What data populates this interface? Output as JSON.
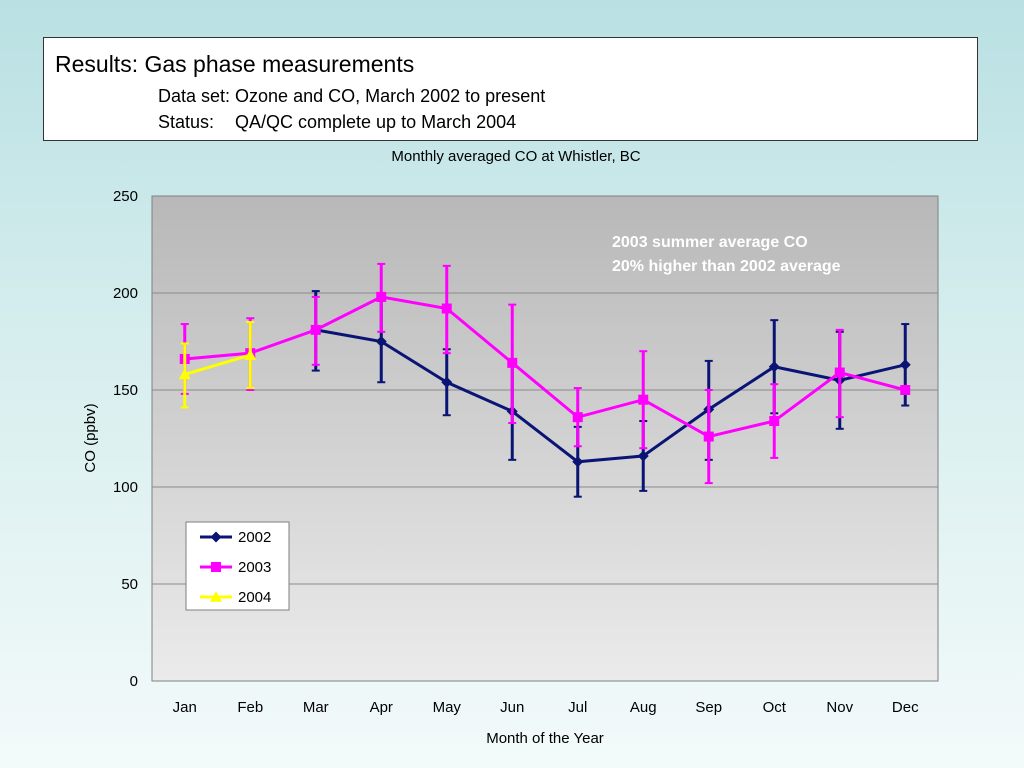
{
  "header": {
    "title": "Results: Gas phase measurements",
    "dataset_line": "Data set: Ozone and CO, March 2002 to present",
    "status_label": "Status:",
    "status_value": "QA/QC complete up to March 2004"
  },
  "colors": {
    "series_2002": "#0a1475",
    "series_2003": "#ff00ff",
    "series_2004": "#ffff00",
    "annotation": "#ffffff",
    "plot_bg_top": "#b8b8b8",
    "plot_bg_bottom": "#ebebeb",
    "gridline": "#8a8a8a"
  },
  "chart_data": {
    "type": "line",
    "title": "Monthly averaged CO at Whistler, BC",
    "xlabel": "Month of the Year",
    "ylabel": "CO (ppbv)",
    "categories": [
      "Jan",
      "Feb",
      "Mar",
      "Apr",
      "May",
      "Jun",
      "Jul",
      "Aug",
      "Sep",
      "Oct",
      "Nov",
      "Dec"
    ],
    "ylim": [
      0,
      250
    ],
    "yticks": [
      0,
      50,
      100,
      150,
      200,
      250
    ],
    "grid": true,
    "legend_position": "bottom-left",
    "annotation": [
      "2003 summer average CO",
      "20% higher than 2002 average"
    ],
    "series": [
      {
        "name": "2002",
        "marker": "diamond",
        "values": [
          null,
          null,
          181,
          175,
          154,
          139,
          113,
          116,
          140,
          162,
          155,
          163
        ],
        "error_low": [
          null,
          null,
          160,
          154,
          137,
          114,
          95,
          98,
          114,
          138,
          130,
          142
        ],
        "error_high": [
          null,
          null,
          201,
          196,
          171,
          165,
          131,
          134,
          165,
          186,
          180,
          184
        ]
      },
      {
        "name": "2003",
        "marker": "square",
        "values": [
          166,
          169,
          181,
          198,
          192,
          164,
          136,
          145,
          126,
          134,
          159,
          150
        ],
        "error_low": [
          148,
          150,
          163,
          180,
          169,
          133,
          121,
          120,
          102,
          115,
          136,
          150
        ],
        "error_high": [
          184,
          187,
          198,
          215,
          214,
          194,
          151,
          170,
          150,
          153,
          181,
          150
        ]
      },
      {
        "name": "2004",
        "marker": "triangle",
        "values": [
          158,
          168,
          null,
          null,
          null,
          null,
          null,
          null,
          null,
          null,
          null,
          null
        ],
        "error_low": [
          141,
          151,
          null,
          null,
          null,
          null,
          null,
          null,
          null,
          null,
          null,
          null
        ],
        "error_high": [
          174,
          185,
          null,
          null,
          null,
          null,
          null,
          null,
          null,
          null,
          null,
          null
        ]
      }
    ]
  }
}
